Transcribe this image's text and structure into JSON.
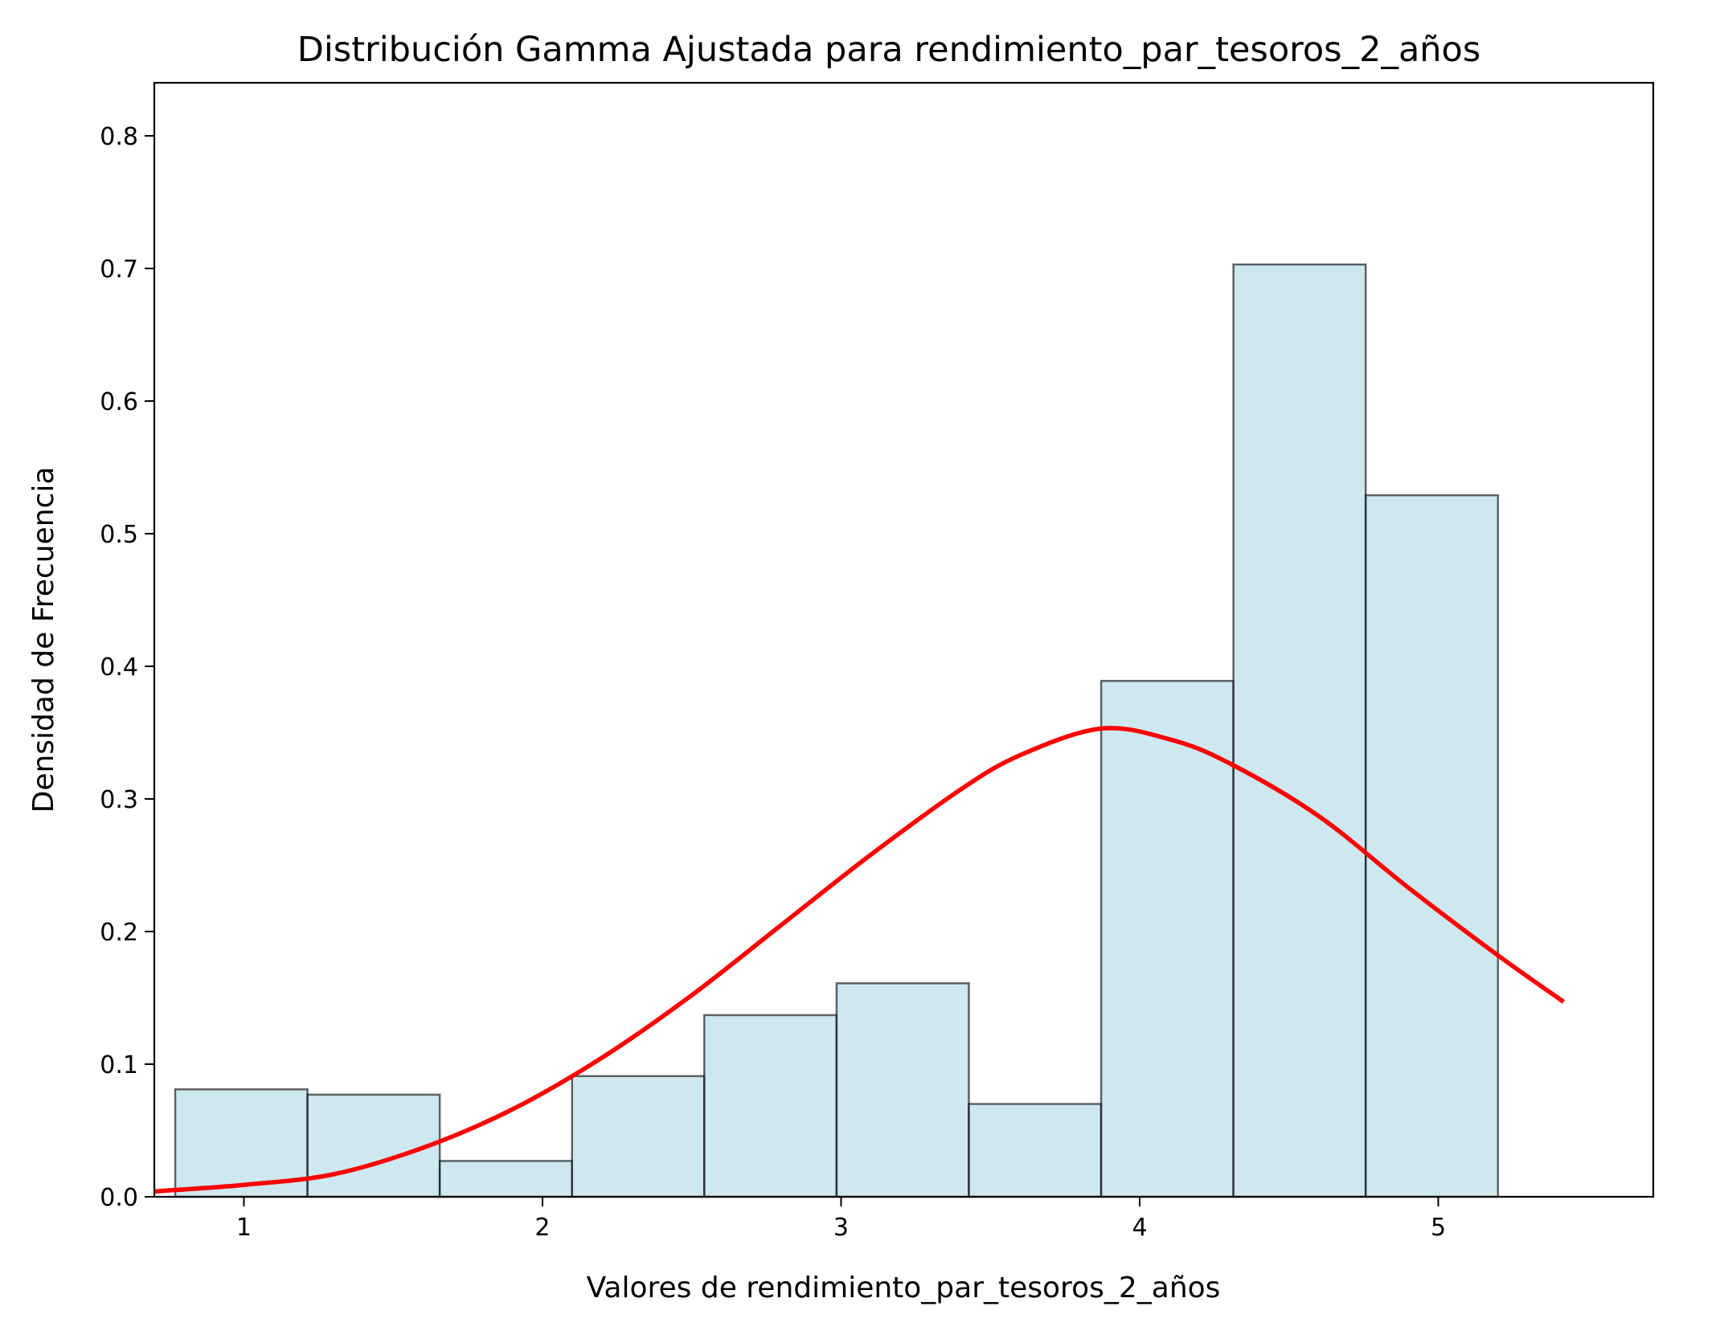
{
  "chart_data": {
    "type": "bar",
    "title": "Distribución Gamma Ajustada para rendimiento_par_tesoros_2_años",
    "xlabel": "Valores de rendimiento_par_tesoros_2_años",
    "ylabel": "Densidad de Frecuencia",
    "xlim": [
      0.7,
      5.72
    ],
    "ylim": [
      0,
      0.84
    ],
    "xticks": [
      1,
      2,
      3,
      4,
      5
    ],
    "yticks": [
      0.0,
      0.1,
      0.2,
      0.3,
      0.4,
      0.5,
      0.6,
      0.7,
      0.8
    ],
    "ytick_labels": [
      "0.0",
      "0.1",
      "0.2",
      "0.3",
      "0.4",
      "0.5",
      "0.6",
      "0.7",
      "0.8"
    ],
    "grid": false,
    "histogram": {
      "bin_edges": [
        0.77,
        1.213,
        1.656,
        2.099,
        2.542,
        2.985,
        3.428,
        3.871,
        4.314,
        4.757,
        5.2
      ],
      "values": [
        0.081,
        0.077,
        0.027,
        0.091,
        0.137,
        0.161,
        0.07,
        0.389,
        0.703,
        0.529
      ],
      "fill_color": "#add8e6",
      "edge_color": "#000000"
    },
    "fitted_curve": {
      "distribution": "gamma",
      "color": "#ff0000",
      "x": [
        0.7,
        1.0,
        1.3,
        1.6,
        1.9,
        2.2,
        2.5,
        2.8,
        3.1,
        3.4,
        3.6,
        3.87,
        4.1,
        4.3,
        4.6,
        4.9,
        5.2,
        5.42
      ],
      "y": [
        0.004,
        0.009,
        0.017,
        0.037,
        0.066,
        0.105,
        0.152,
        0.205,
        0.258,
        0.307,
        0.333,
        0.353,
        0.345,
        0.327,
        0.287,
        0.233,
        0.182,
        0.147
      ]
    }
  }
}
